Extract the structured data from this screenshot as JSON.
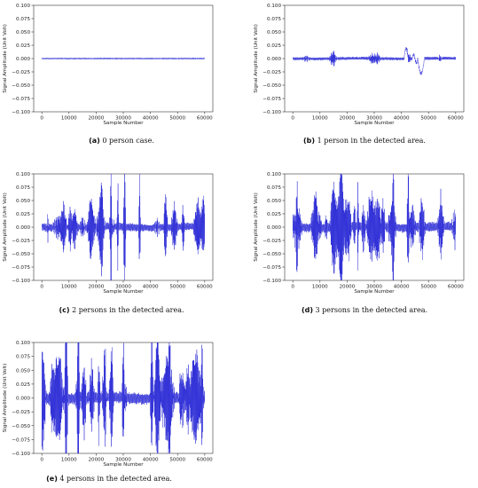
{
  "panels": [
    {
      "letter": "(a)",
      "caption": "0 person case.",
      "seed": 11,
      "amp": 0.0012,
      "burst": 0.0,
      "special": "flat"
    },
    {
      "letter": "(b)",
      "caption": "1 person in the detected area.",
      "seed": 23,
      "amp": 0.0035,
      "burst": 0.006,
      "special": "one"
    },
    {
      "letter": "(c)",
      "caption": "2 persons in the detected area.",
      "seed": 37,
      "amp": 0.009,
      "burst": 0.03,
      "special": "two"
    },
    {
      "letter": "(d)",
      "caption": "3 persons in the detected area.",
      "seed": 51,
      "amp": 0.011,
      "burst": 0.035,
      "special": "three"
    },
    {
      "letter": "(e)",
      "caption": "4 persons in the detected area.",
      "seed": 67,
      "amp": 0.013,
      "burst": 0.045,
      "special": "four"
    }
  ],
  "chart_data": {
    "type": "line",
    "xlabel": "Sample Number",
    "ylabel": "Signal Amplitude (Unit Volt)",
    "xlim": [
      -3000,
      63000
    ],
    "ylim": [
      -0.1,
      0.1
    ],
    "xticks": [
      0,
      10000,
      20000,
      30000,
      40000,
      50000,
      60000
    ],
    "yticks": [
      -0.1,
      -0.075,
      -0.05,
      -0.025,
      0.0,
      0.025,
      0.05,
      0.075,
      0.1
    ],
    "ytick_labels": [
      "−0.100",
      "−0.075",
      "−0.050",
      "−0.025",
      "0.000",
      "0.025",
      "0.050",
      "0.075",
      "0.100"
    ],
    "series_color": "#2b2bd6",
    "grid": false
  }
}
